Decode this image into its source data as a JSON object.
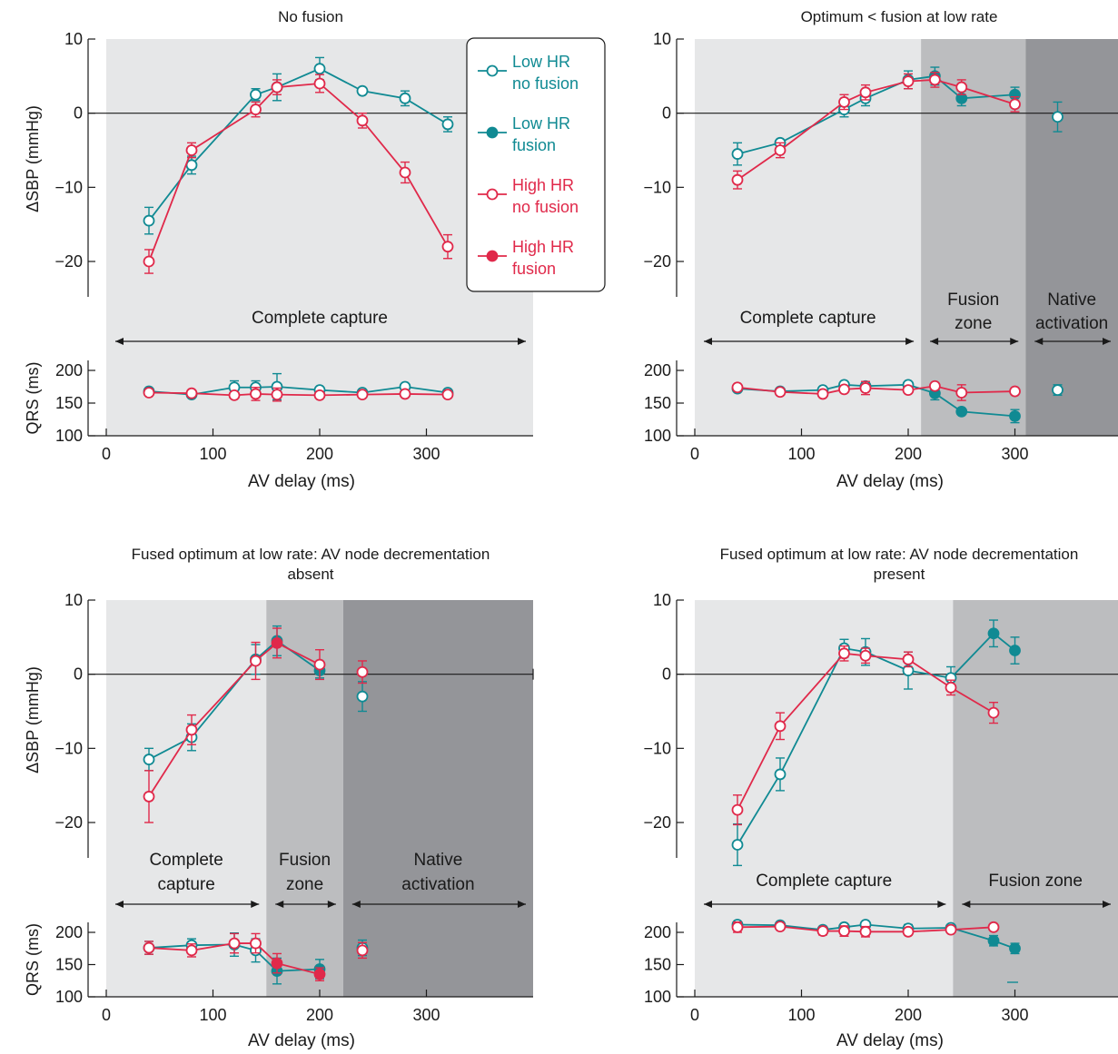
{
  "chart_data": [
    {
      "type": "line",
      "title": "No fusion",
      "xlabel": "AV delay (ms)",
      "ylabel_top": "ΔSBP (mmHg)",
      "ylabel_bottom": "QRS (ms)",
      "xlim": [
        0,
        400
      ],
      "xticks": [
        "0",
        "100",
        "200",
        "300"
      ],
      "top_ylim": [
        -25,
        10
      ],
      "top_yticks": [
        "10",
        "0",
        "−10",
        "−20"
      ],
      "bottom_ylim": [
        100,
        220
      ],
      "bottom_yticks": [
        "200",
        "150",
        "100"
      ],
      "zones": [
        {
          "label": "Complete capture",
          "x": [
            0,
            400
          ],
          "shade": "#e6e7e8"
        }
      ],
      "legend": {
        "position": "top-right",
        "entries": [
          {
            "label": "Low HR no fusion",
            "color": "#108a93",
            "filled": false
          },
          {
            "label": "Low HR fusion",
            "color": "#108a93",
            "filled": true
          },
          {
            "label": "High HR no fusion",
            "color": "#e0294a",
            "filled": false
          },
          {
            "label": "High HR fusion",
            "color": "#e0294a",
            "filled": true
          }
        ]
      },
      "sbp_series": [
        {
          "name": "Low HR",
          "color": "#108a93",
          "x": [
            40,
            80,
            140,
            160,
            200,
            240,
            280,
            320
          ],
          "y": [
            -14.5,
            -7,
            2.5,
            3.5,
            6,
            3,
            2,
            -1.5
          ],
          "err": [
            1.8,
            1.2,
            0.8,
            1.8,
            1.5,
            0,
            1,
            1
          ],
          "filled": [
            false,
            false,
            false,
            false,
            false,
            false,
            false,
            false
          ]
        },
        {
          "name": "High HR",
          "color": "#e0294a",
          "x": [
            40,
            80,
            140,
            160,
            200,
            240,
            280,
            320
          ],
          "y": [
            -20,
            -5,
            0.5,
            3.5,
            4,
            -1,
            -8,
            -18
          ],
          "err": [
            1.6,
            1,
            1,
            1,
            1.2,
            1,
            1.4,
            1.6
          ],
          "filled": [
            false,
            false,
            false,
            false,
            false,
            false,
            false,
            false
          ]
        }
      ],
      "qrs_series": [
        {
          "name": "Low HR",
          "color": "#108a93",
          "x": [
            40,
            80,
            120,
            140,
            160,
            200,
            240,
            280,
            320
          ],
          "y": [
            168,
            163,
            174,
            174,
            175,
            170,
            166,
            175,
            166
          ],
          "err": [
            0,
            0,
            10,
            10,
            20,
            0,
            0,
            0,
            0
          ],
          "filled": [
            false,
            false,
            false,
            false,
            false,
            false,
            false,
            false,
            false
          ]
        },
        {
          "name": "High HR",
          "color": "#e0294a",
          "x": [
            40,
            80,
            120,
            140,
            160,
            200,
            240,
            280,
            320
          ],
          "y": [
            166,
            165,
            162,
            164,
            163,
            162,
            163,
            164,
            163
          ],
          "err": [
            0,
            0,
            0,
            10,
            10,
            0,
            0,
            0,
            0
          ],
          "filled": [
            false,
            false,
            false,
            false,
            false,
            false,
            false,
            false,
            false
          ]
        }
      ]
    },
    {
      "type": "line",
      "title": "Optimum < fusion at low rate",
      "xlabel": "AV delay (ms)",
      "ylabel_top": "",
      "ylabel_bottom": "",
      "xlim": [
        0,
        400
      ],
      "xticks": [
        "0",
        "100",
        "200",
        "300"
      ],
      "top_ylim": [
        -25,
        10
      ],
      "top_yticks": [
        "10",
        "0",
        "−10",
        "−20"
      ],
      "bottom_ylim": [
        100,
        220
      ],
      "bottom_yticks": [
        "200",
        "150",
        "100"
      ],
      "zones": [
        {
          "label": "Complete capture",
          "x": [
            0,
            212
          ],
          "shade": "#e6e7e8"
        },
        {
          "label": "Fusion zone",
          "x": [
            212,
            310
          ],
          "shade": "#bcbdbf"
        },
        {
          "label": "Native activation",
          "x": [
            310,
            400
          ],
          "shade": "#949599"
        }
      ],
      "sbp_series": [
        {
          "name": "Low HR",
          "color": "#108a93",
          "x": [
            40,
            80,
            140,
            160,
            200,
            225,
            250,
            300
          ],
          "y": [
            -5.5,
            -4,
            0.5,
            2,
            4.5,
            5,
            2,
            2.5
          ],
          "err": [
            1.5,
            0,
            1,
            1,
            1.2,
            1.2,
            1,
            1
          ],
          "filled": [
            false,
            false,
            false,
            false,
            false,
            true,
            true,
            true
          ]
        },
        {
          "name": "High HR",
          "color": "#e0294a",
          "x": [
            40,
            80,
            140,
            160,
            200,
            225,
            250,
            300
          ],
          "y": [
            -9,
            -5,
            1.5,
            2.8,
            4.3,
            4.5,
            3.5,
            1.2
          ],
          "err": [
            1.2,
            1,
            1,
            1,
            1,
            1,
            1,
            1
          ],
          "filled": [
            false,
            false,
            false,
            false,
            false,
            false,
            false,
            false
          ]
        },
        {
          "name": "Low HR native",
          "color": "#108a93",
          "x": [
            340
          ],
          "y": [
            -0.5
          ],
          "err": [
            2
          ],
          "filled": [
            false
          ]
        }
      ],
      "qrs_series": [
        {
          "name": "Low HR",
          "color": "#108a93",
          "x": [
            40,
            80,
            120,
            140,
            160,
            200,
            225,
            250,
            300
          ],
          "y": [
            172,
            168,
            170,
            178,
            176,
            178,
            165,
            137,
            130
          ],
          "err": [
            0,
            0,
            0,
            0,
            0,
            0,
            10,
            0,
            10
          ],
          "filled": [
            false,
            false,
            false,
            false,
            false,
            false,
            true,
            true,
            true
          ]
        },
        {
          "name": "High HR",
          "color": "#e0294a",
          "x": [
            40,
            80,
            120,
            140,
            160,
            200,
            225,
            250,
            300
          ],
          "y": [
            174,
            167,
            164,
            171,
            173,
            170,
            176,
            166,
            168
          ],
          "err": [
            0,
            0,
            0,
            0,
            10,
            0,
            0,
            12,
            0
          ],
          "filled": [
            false,
            false,
            false,
            false,
            false,
            false,
            false,
            false,
            false
          ]
        },
        {
          "name": "Low HR native",
          "color": "#108a93",
          "x": [
            340
          ],
          "y": [
            170
          ],
          "err": [
            8
          ],
          "filled": [
            false
          ]
        }
      ]
    },
    {
      "type": "line",
      "title": "Fused optimum at low rate: AV node decrementation absent",
      "xlabel": "AV delay (ms)",
      "ylabel_top": "ΔSBP (mmHg)",
      "ylabel_bottom": "QRS (ms)",
      "xlim": [
        0,
        400
      ],
      "xticks": [
        "0",
        "100",
        "200",
        "300"
      ],
      "top_ylim": [
        -25,
        10
      ],
      "top_yticks": [
        "10",
        "0",
        "−10",
        "−20"
      ],
      "bottom_ylim": [
        100,
        220
      ],
      "bottom_yticks": [
        "200",
        "150",
        "100"
      ],
      "zones": [
        {
          "label": "Complete capture",
          "x": [
            0,
            150
          ],
          "shade": "#e6e7e8"
        },
        {
          "label": "Fusion zone",
          "x": [
            150,
            222
          ],
          "shade": "#bcbdbf"
        },
        {
          "label": "Native activation",
          "x": [
            222,
            400
          ],
          "shade": "#949599"
        }
      ],
      "sbp_series": [
        {
          "name": "Low HR",
          "color": "#108a93",
          "x": [
            40,
            80,
            140,
            160,
            200
          ],
          "y": [
            -11.5,
            -8.5,
            2,
            4.5,
            0.5
          ],
          "err": [
            1.5,
            1.8,
            2,
            2,
            1
          ],
          "filled": [
            false,
            false,
            false,
            true,
            true
          ]
        },
        {
          "name": "High HR",
          "color": "#e0294a",
          "x": [
            40,
            80,
            140,
            160,
            200
          ],
          "y": [
            -16.5,
            -7.5,
            1.8,
            4.2,
            1.3
          ],
          "err": [
            3.5,
            2,
            2.5,
            2,
            2
          ],
          "filled": [
            false,
            false,
            false,
            true,
            false
          ]
        },
        {
          "name": "Low HR native",
          "color": "#108a93",
          "x": [
            240
          ],
          "y": [
            -3
          ],
          "err": [
            2
          ],
          "filled": [
            false
          ]
        },
        {
          "name": "High HR native",
          "color": "#e0294a",
          "x": [
            240
          ],
          "y": [
            0.3
          ],
          "err": [
            1.5
          ],
          "filled": [
            false
          ]
        }
      ],
      "qrs_series": [
        {
          "name": "Low HR",
          "color": "#108a93",
          "x": [
            40,
            80,
            120,
            140,
            160,
            200
          ],
          "y": [
            176,
            180,
            181,
            172,
            140,
            143
          ],
          "err": [
            10,
            10,
            18,
            18,
            20,
            15
          ],
          "filled": [
            false,
            false,
            false,
            false,
            true,
            true
          ]
        },
        {
          "name": "High HR",
          "color": "#e0294a",
          "x": [
            40,
            80,
            120,
            140,
            160,
            200
          ],
          "y": [
            176,
            172,
            183,
            183,
            152,
            135
          ],
          "err": [
            10,
            10,
            15,
            15,
            15,
            10
          ],
          "filled": [
            false,
            false,
            false,
            false,
            true,
            true
          ]
        },
        {
          "name": "Low HR native",
          "color": "#108a93",
          "x": [
            240
          ],
          "y": [
            176
          ],
          "err": [
            12
          ],
          "filled": [
            false
          ]
        },
        {
          "name": "High HR native",
          "color": "#e0294a",
          "x": [
            240
          ],
          "y": [
            172
          ],
          "err": [
            12
          ],
          "filled": [
            false
          ]
        }
      ]
    },
    {
      "type": "line",
      "title": "Fused optimum at low rate: AV node decrementation present",
      "xlabel": "AV delay (ms)",
      "ylabel_top": "",
      "ylabel_bottom": "",
      "xlim": [
        0,
        400
      ],
      "xticks": [
        "0",
        "100",
        "200",
        "300"
      ],
      "top_ylim": [
        -25,
        10
      ],
      "top_yticks": [
        "10",
        "0",
        "−10",
        "−20"
      ],
      "bottom_ylim": [
        100,
        220
      ],
      "bottom_yticks": [
        "200",
        "150",
        "100"
      ],
      "zones": [
        {
          "label": "Complete capture",
          "x": [
            0,
            242
          ],
          "shade": "#e6e7e8"
        },
        {
          "label": "Fusion zone",
          "x": [
            242,
            400
          ],
          "shade": "#bcbdbf"
        }
      ],
      "sbp_series": [
        {
          "name": "Low HR",
          "color": "#108a93",
          "x": [
            40,
            80,
            140,
            160,
            200,
            240,
            280,
            300
          ],
          "y": [
            -23,
            -13.5,
            3.5,
            3,
            0.5,
            -0.5,
            5.5,
            3.2
          ],
          "err": [
            2.8,
            2.2,
            1.2,
            1.8,
            2.5,
            1.5,
            1.8,
            1.8
          ],
          "filled": [
            false,
            false,
            false,
            false,
            false,
            false,
            true,
            true
          ]
        },
        {
          "name": "High HR",
          "color": "#e0294a",
          "x": [
            40,
            80,
            140,
            160,
            200,
            240,
            280
          ],
          "y": [
            -18.3,
            -7,
            2.8,
            2.5,
            2,
            -1.8,
            -5.2
          ],
          "err": [
            2,
            1.8,
            1,
            1,
            1,
            1,
            1.4
          ],
          "filled": [
            false,
            false,
            false,
            false,
            false,
            false,
            false
          ]
        }
      ],
      "qrs_series": [
        {
          "name": "Low HR",
          "color": "#108a93",
          "x": [
            40,
            80,
            120,
            140,
            160,
            200,
            240,
            280,
            300
          ],
          "y": [
            212,
            211,
            204,
            208,
            212,
            206,
            207,
            187,
            175
          ],
          "err": [
            0,
            0,
            5,
            0,
            0,
            6,
            0,
            8,
            8
          ],
          "filled": [
            false,
            false,
            false,
            false,
            false,
            false,
            false,
            true,
            true
          ]
        },
        {
          "name": "High HR",
          "color": "#e0294a",
          "x": [
            40,
            80,
            120,
            140,
            160,
            200,
            240,
            280
          ],
          "y": [
            208,
            209,
            202,
            202,
            201,
            201,
            204,
            208
          ],
          "err": [
            8,
            0,
            6,
            8,
            8,
            5,
            0,
            0
          ],
          "filled": [
            false,
            false,
            false,
            false,
            false,
            false,
            false,
            false
          ]
        },
        {
          "name": "Low HR outlier",
          "color": "#108a93",
          "x": [],
          "y": [],
          "err": [],
          "filled": []
        }
      ]
    }
  ]
}
